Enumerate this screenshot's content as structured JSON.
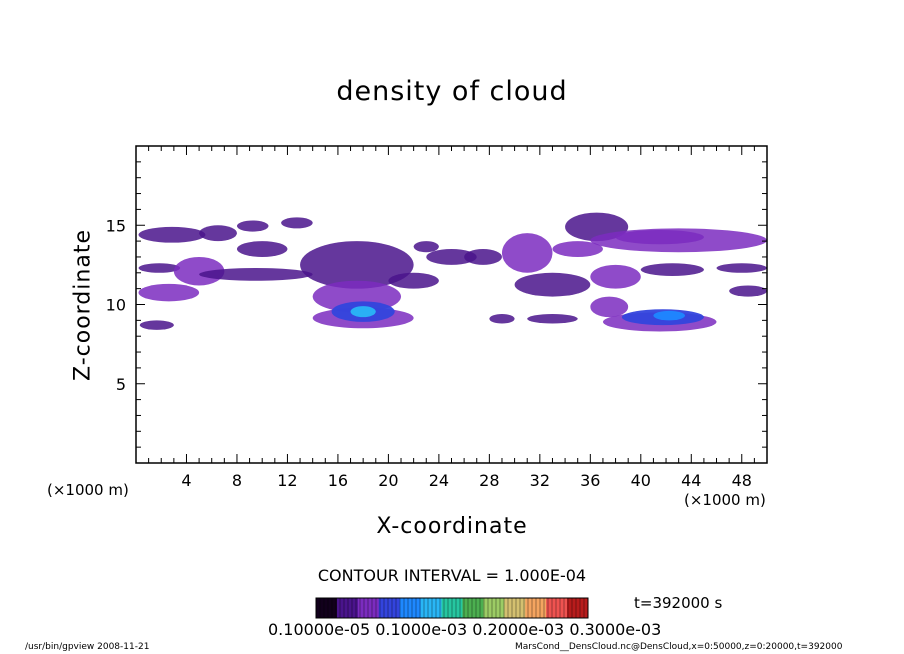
{
  "chart_data": {
    "type": "heatmap",
    "title": "density of cloud",
    "xlabel": "X-coordinate",
    "ylabel": "Z-coordinate",
    "x_unit_label": "(×1000 m)",
    "xlim": [
      0,
      50
    ],
    "ylim": [
      0,
      20
    ],
    "x_ticks": [
      4,
      8,
      12,
      16,
      20,
      24,
      28,
      32,
      36,
      40,
      44,
      48
    ],
    "y_ticks": [
      5,
      10,
      15
    ],
    "contour_interval_text": "CONTOUR INTERVAL = 1.000E-04",
    "time_label": "t=392000 s",
    "colorbar_labels_text": "0.10000e-05 0.1000e-03 0.2000e-03 0.3000e-03",
    "colormap": [
      "#12001c",
      "#4a148c",
      "#7b2cbf",
      "#3344dd",
      "#1e88ff",
      "#29b6f6",
      "#26c6a0",
      "#4caf50",
      "#9ccc65",
      "#d4c070",
      "#f4a460",
      "#ef5350",
      "#b71c1c"
    ],
    "regions": [
      {
        "x": [
          0.2,
          5.5
        ],
        "z": [
          13.9,
          14.9
        ],
        "value": 0.3
      },
      {
        "x": [
          5.0,
          8.0
        ],
        "z": [
          14.0,
          15.0
        ],
        "value": 0.25
      },
      {
        "x": [
          8.0,
          10.5
        ],
        "z": [
          14.6,
          15.3
        ],
        "value": 0.3
      },
      {
        "x": [
          11.5,
          14.0
        ],
        "z": [
          14.8,
          15.5
        ],
        "value": 0.35
      },
      {
        "x": [
          0.2,
          3.5
        ],
        "z": [
          12.0,
          12.6
        ],
        "value": 0.3
      },
      {
        "x": [
          3.0,
          7.0
        ],
        "z": [
          11.2,
          13.0
        ],
        "value": 0.5
      },
      {
        "x": [
          0.2,
          5.0
        ],
        "z": [
          10.2,
          11.3
        ],
        "value": 0.6
      },
      {
        "x": [
          5.0,
          14.0
        ],
        "z": [
          11.5,
          12.3
        ],
        "value": 0.3
      },
      {
        "x": [
          8.0,
          12.0
        ],
        "z": [
          13.0,
          14.0
        ],
        "value": 0.25
      },
      {
        "x": [
          13.0,
          22.0
        ],
        "z": [
          11.0,
          14.0
        ],
        "value": 0.35
      },
      {
        "x": [
          14.0,
          21.0
        ],
        "z": [
          9.5,
          11.5
        ],
        "value": 0.5
      },
      {
        "x": [
          0.3,
          3.0
        ],
        "z": [
          8.4,
          9.0
        ],
        "value": 0.3
      },
      {
        "x": [
          14.0,
          22.0
        ],
        "z": [
          8.5,
          9.8
        ],
        "value": 0.7
      },
      {
        "x": [
          15.5,
          20.5
        ],
        "z": [
          8.9,
          10.2
        ],
        "value": 1.2
      },
      {
        "x": [
          17.0,
          19.0
        ],
        "z": [
          9.2,
          9.9
        ],
        "value": 1.8
      },
      {
        "x": [
          20.0,
          24.0
        ],
        "z": [
          11.0,
          12.0
        ],
        "value": 0.3
      },
      {
        "x": [
          23.0,
          27.0
        ],
        "z": [
          12.5,
          13.5
        ],
        "value": 0.3
      },
      {
        "x": [
          22.0,
          24.0
        ],
        "z": [
          13.3,
          14.0
        ],
        "value": 0.25
      },
      {
        "x": [
          26.0,
          29.0
        ],
        "z": [
          12.5,
          13.5
        ],
        "value": 0.25
      },
      {
        "x": [
          29.0,
          33.0
        ],
        "z": [
          12.0,
          14.5
        ],
        "value": 0.4
      },
      {
        "x": [
          28.0,
          30.0
        ],
        "z": [
          8.8,
          9.4
        ],
        "value": 0.25
      },
      {
        "x": [
          31.0,
          35.0
        ],
        "z": [
          8.8,
          9.4
        ],
        "value": 0.25
      },
      {
        "x": [
          30.0,
          36.0
        ],
        "z": [
          10.5,
          12.0
        ],
        "value": 0.3
      },
      {
        "x": [
          33.0,
          37.0
        ],
        "z": [
          13.0,
          14.0
        ],
        "value": 0.4
      },
      {
        "x": [
          34.0,
          39.0
        ],
        "z": [
          14.0,
          15.8
        ],
        "value": 0.35
      },
      {
        "x": [
          36.0,
          50.0
        ],
        "z": [
          13.3,
          14.8
        ],
        "value": 0.5
      },
      {
        "x": [
          38.0,
          45.0
        ],
        "z": [
          13.8,
          14.7
        ],
        "value": 0.65
      },
      {
        "x": [
          40.0,
          45.0
        ],
        "z": [
          11.8,
          12.6
        ],
        "value": 0.3
      },
      {
        "x": [
          36.0,
          40.0
        ],
        "z": [
          11.0,
          12.5
        ],
        "value": 0.4
      },
      {
        "x": [
          36.0,
          39.0
        ],
        "z": [
          9.2,
          10.5
        ],
        "value": 0.6
      },
      {
        "x": [
          37.0,
          46.0
        ],
        "z": [
          8.3,
          9.5
        ],
        "value": 0.7
      },
      {
        "x": [
          38.5,
          45.0
        ],
        "z": [
          8.7,
          9.7
        ],
        "value": 1.2
      },
      {
        "x": [
          41.0,
          43.5
        ],
        "z": [
          9.0,
          9.6
        ],
        "value": 1.7
      },
      {
        "x": [
          46.0,
          50.0
        ],
        "z": [
          12.0,
          12.6
        ],
        "value": 0.25
      },
      {
        "x": [
          47.0,
          50.0
        ],
        "z": [
          10.5,
          11.2
        ],
        "value": 0.3
      }
    ]
  },
  "footer": {
    "left": "/usr/bin/gpview   2008-11-21",
    "right": "MarsCond__DensCloud.nc@DensCloud,x=0:50000,z=0:20000,t=392000"
  }
}
